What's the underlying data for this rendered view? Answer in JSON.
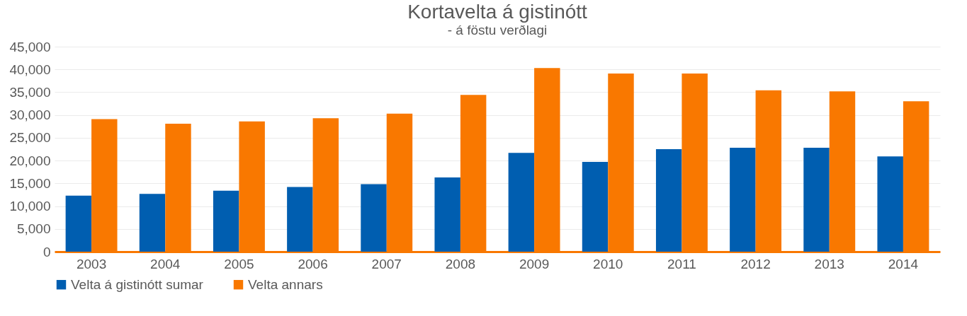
{
  "chart_data": {
    "type": "bar",
    "title": "Kortavelta á gistinótt",
    "subtitle": "- á föstu verðlagi",
    "categories": [
      "2003",
      "2004",
      "2005",
      "2006",
      "2007",
      "2008",
      "2009",
      "2010",
      "2011",
      "2012",
      "2013",
      "2014"
    ],
    "series": [
      {
        "name": "Velta á gistinótt sumar",
        "color": "#005eb0",
        "values": [
          12300,
          12700,
          13400,
          14200,
          14800,
          16300,
          21700,
          19700,
          22500,
          22800,
          22800,
          20900
        ]
      },
      {
        "name": "Velta annars",
        "color": "#f97800",
        "values": [
          29100,
          28100,
          28600,
          29300,
          30300,
          34400,
          40300,
          39100,
          39100,
          35400,
          35200,
          33000
        ]
      }
    ],
    "ylim": [
      0,
      45000
    ],
    "yticks": [
      0,
      {
        "value": 5000,
        "label": "5,000"
      },
      {
        "value": 10000,
        "label": "10,000"
      },
      {
        "value": 15000,
        "label": "15,000"
      },
      {
        "value": 20000,
        "label": "20,000"
      },
      {
        "value": 25000,
        "label": "25,000"
      },
      {
        "value": 30000,
        "label": "30,000"
      },
      {
        "value": 35000,
        "label": "35,000"
      },
      {
        "value": 40000,
        "label": "40,000"
      },
      {
        "value": 45000,
        "label": "45,000"
      }
    ],
    "grid": "y",
    "legend": "bottom"
  }
}
